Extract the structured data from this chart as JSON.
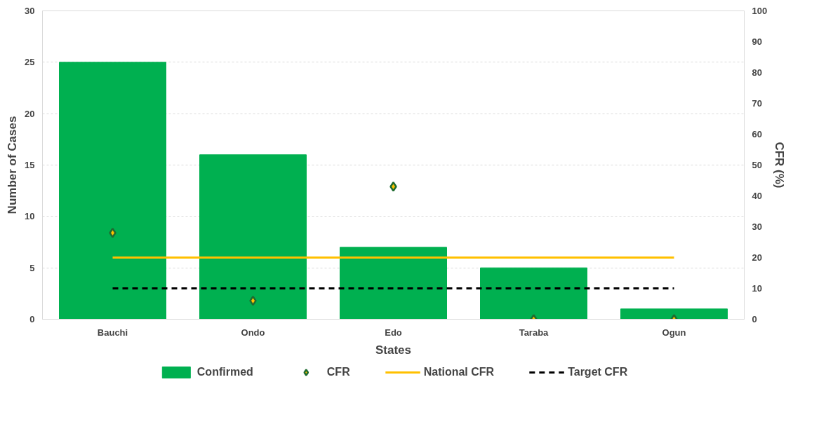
{
  "chart_data": {
    "type": "bar",
    "xlabel": "States",
    "ylabel": "Number of Cases",
    "y2label": "CFR (%)",
    "categories": [
      "Bauchi",
      "Ondo",
      "Edo",
      "Taraba",
      "Ogun"
    ],
    "series": [
      {
        "name": "Confirmed",
        "type": "bar",
        "color": "#00b050",
        "values": [
          25,
          16,
          7,
          5,
          1
        ]
      },
      {
        "name": "CFR",
        "type": "scatter",
        "axis": "y2",
        "marker": "diamond",
        "color": "#ffc000",
        "values": [
          28,
          6,
          43,
          0,
          0
        ]
      },
      {
        "name": "National CFR",
        "type": "line",
        "axis": "y2",
        "line_style": "solid",
        "color": "#ffc000",
        "values": [
          20,
          20,
          20,
          20,
          20
        ]
      },
      {
        "name": "Target CFR",
        "type": "line",
        "axis": "y2",
        "line_style": "dashed",
        "color": "#000000",
        "values": [
          10,
          10,
          10,
          10,
          10
        ]
      }
    ],
    "ylim": [
      0,
      30
    ],
    "yticks": [
      0,
      5,
      10,
      15,
      20,
      25,
      30
    ],
    "y2lim": [
      0,
      100
    ],
    "y2ticks": [
      0,
      10,
      20,
      30,
      40,
      50,
      60,
      70,
      80,
      90,
      100
    ],
    "grid": "y",
    "legend": "bottom"
  }
}
